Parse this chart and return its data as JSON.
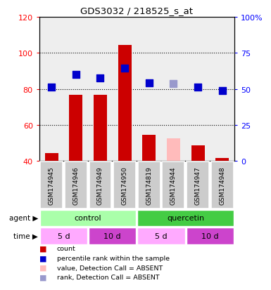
{
  "title": "GDS3032 / 218525_s_at",
  "samples": [
    "GSM174945",
    "GSM174946",
    "GSM174949",
    "GSM174950",
    "GSM174819",
    "GSM174944",
    "GSM174947",
    "GSM174948"
  ],
  "bar_values": [
    44.5,
    76.5,
    76.5,
    104.5,
    54.5,
    52.5,
    48.5,
    41.5
  ],
  "bar_colors": [
    "#cc0000",
    "#cc0000",
    "#cc0000",
    "#cc0000",
    "#cc0000",
    "#ffbbbb",
    "#cc0000",
    "#cc0000"
  ],
  "rank_values": [
    81.0,
    88.0,
    86.0,
    91.5,
    83.5,
    83.0,
    81.0,
    79.0
  ],
  "rank_colors": [
    "#0000cc",
    "#0000cc",
    "#0000cc",
    "#0000cc",
    "#0000cc",
    "#9999cc",
    "#0000cc",
    "#0000cc"
  ],
  "ylim_left": [
    40,
    120
  ],
  "left_ticks": [
    40,
    60,
    80,
    100,
    120
  ],
  "right_ticks_y": [
    40,
    60,
    80,
    100,
    120
  ],
  "right_tick_labels": [
    "0",
    "25",
    "50",
    "75",
    "100%"
  ],
  "grid_values": [
    60,
    80,
    100
  ],
  "plot_bg": "#eeeeee",
  "bar_width": 0.55,
  "rank_marker_size": 55,
  "legend_items": [
    {
      "color": "#cc0000",
      "label": "count"
    },
    {
      "color": "#0000cc",
      "label": "percentile rank within the sample"
    },
    {
      "color": "#ffbbbb",
      "label": "value, Detection Call = ABSENT"
    },
    {
      "color": "#9999cc",
      "label": "rank, Detection Call = ABSENT"
    }
  ]
}
